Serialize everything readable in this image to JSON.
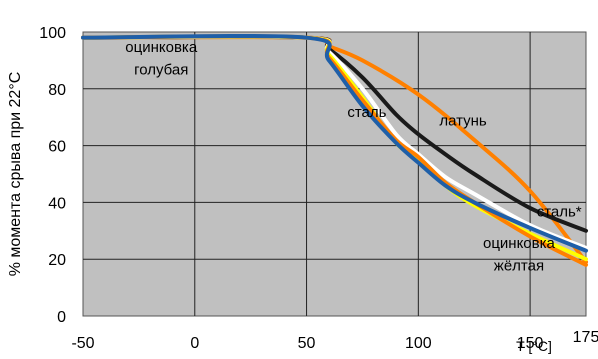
{
  "chart_data": {
    "type": "line",
    "title": "",
    "xlabel": "T [°C]",
    "ylabel": "% момента срыва при 22°C",
    "xlim": [
      -50,
      175
    ],
    "ylim": [
      0,
      100
    ],
    "x_ticks": [
      "-50",
      "0",
      "50",
      "100",
      "150",
      "175"
    ],
    "y_ticks": [
      "0",
      "20",
      "40",
      "60",
      "80",
      "100"
    ],
    "grid": true,
    "plot_background": "#c0c0c0",
    "series": [
      {
        "name": "латунь",
        "color": "#ff8000",
        "x": [
          -50,
          50,
          60,
          75,
          100,
          125,
          150,
          175
        ],
        "y": [
          98,
          98,
          95,
          90,
          78,
          62,
          44,
          19
        ]
      },
      {
        "name": "сталь*",
        "color": "#1a1a1a",
        "x": [
          -50,
          50,
          60,
          75,
          90,
          100,
          112,
          125,
          150,
          175
        ],
        "y": [
          98,
          98,
          94,
          84,
          71,
          64,
          57,
          50,
          38,
          30
        ]
      },
      {
        "name": "",
        "color": "#ffffff",
        "x": [
          -50,
          50,
          60,
          75,
          90,
          100,
          112,
          125,
          150,
          175
        ],
        "y": [
          98,
          98,
          93,
          80,
          64,
          57,
          49,
          43,
          32,
          24
        ]
      },
      {
        "name": "",
        "color": "#ffff00",
        "x": [
          -50,
          50,
          60,
          75,
          90,
          100,
          112,
          125,
          150,
          175
        ],
        "y": [
          98,
          98,
          92,
          77,
          61,
          55,
          46,
          39,
          29,
          20
        ]
      },
      {
        "name": "сталь",
        "color": "#ff8000",
        "x": [
          -50,
          50,
          60,
          75,
          90,
          100,
          112,
          125,
          150,
          175
        ],
        "y": [
          98,
          98,
          91,
          76,
          62,
          56,
          47,
          40,
          28,
          18
        ]
      },
      {
        "name": "",
        "color": "#1f5fa8",
        "x": [
          -50,
          50,
          60,
          75,
          90,
          100,
          112,
          125,
          150,
          175
        ],
        "y": [
          98,
          98,
          90,
          74,
          61,
          54,
          46,
          40,
          31,
          23
        ]
      }
    ],
    "annotations": [
      {
        "text": "оцинковка",
        "x": -15,
        "y": 93
      },
      {
        "text": "голубая",
        "x": -15,
        "y": 85
      },
      {
        "text": "сталь",
        "x": 77,
        "y": 70
      },
      {
        "text": "латунь",
        "x": 120,
        "y": 67
      },
      {
        "text": "сталь*",
        "x": 163,
        "y": 35
      },
      {
        "text": "оцинковка",
        "x": 145,
        "y": 24
      },
      {
        "text": "жёлтая",
        "x": 145,
        "y": 16
      }
    ]
  }
}
